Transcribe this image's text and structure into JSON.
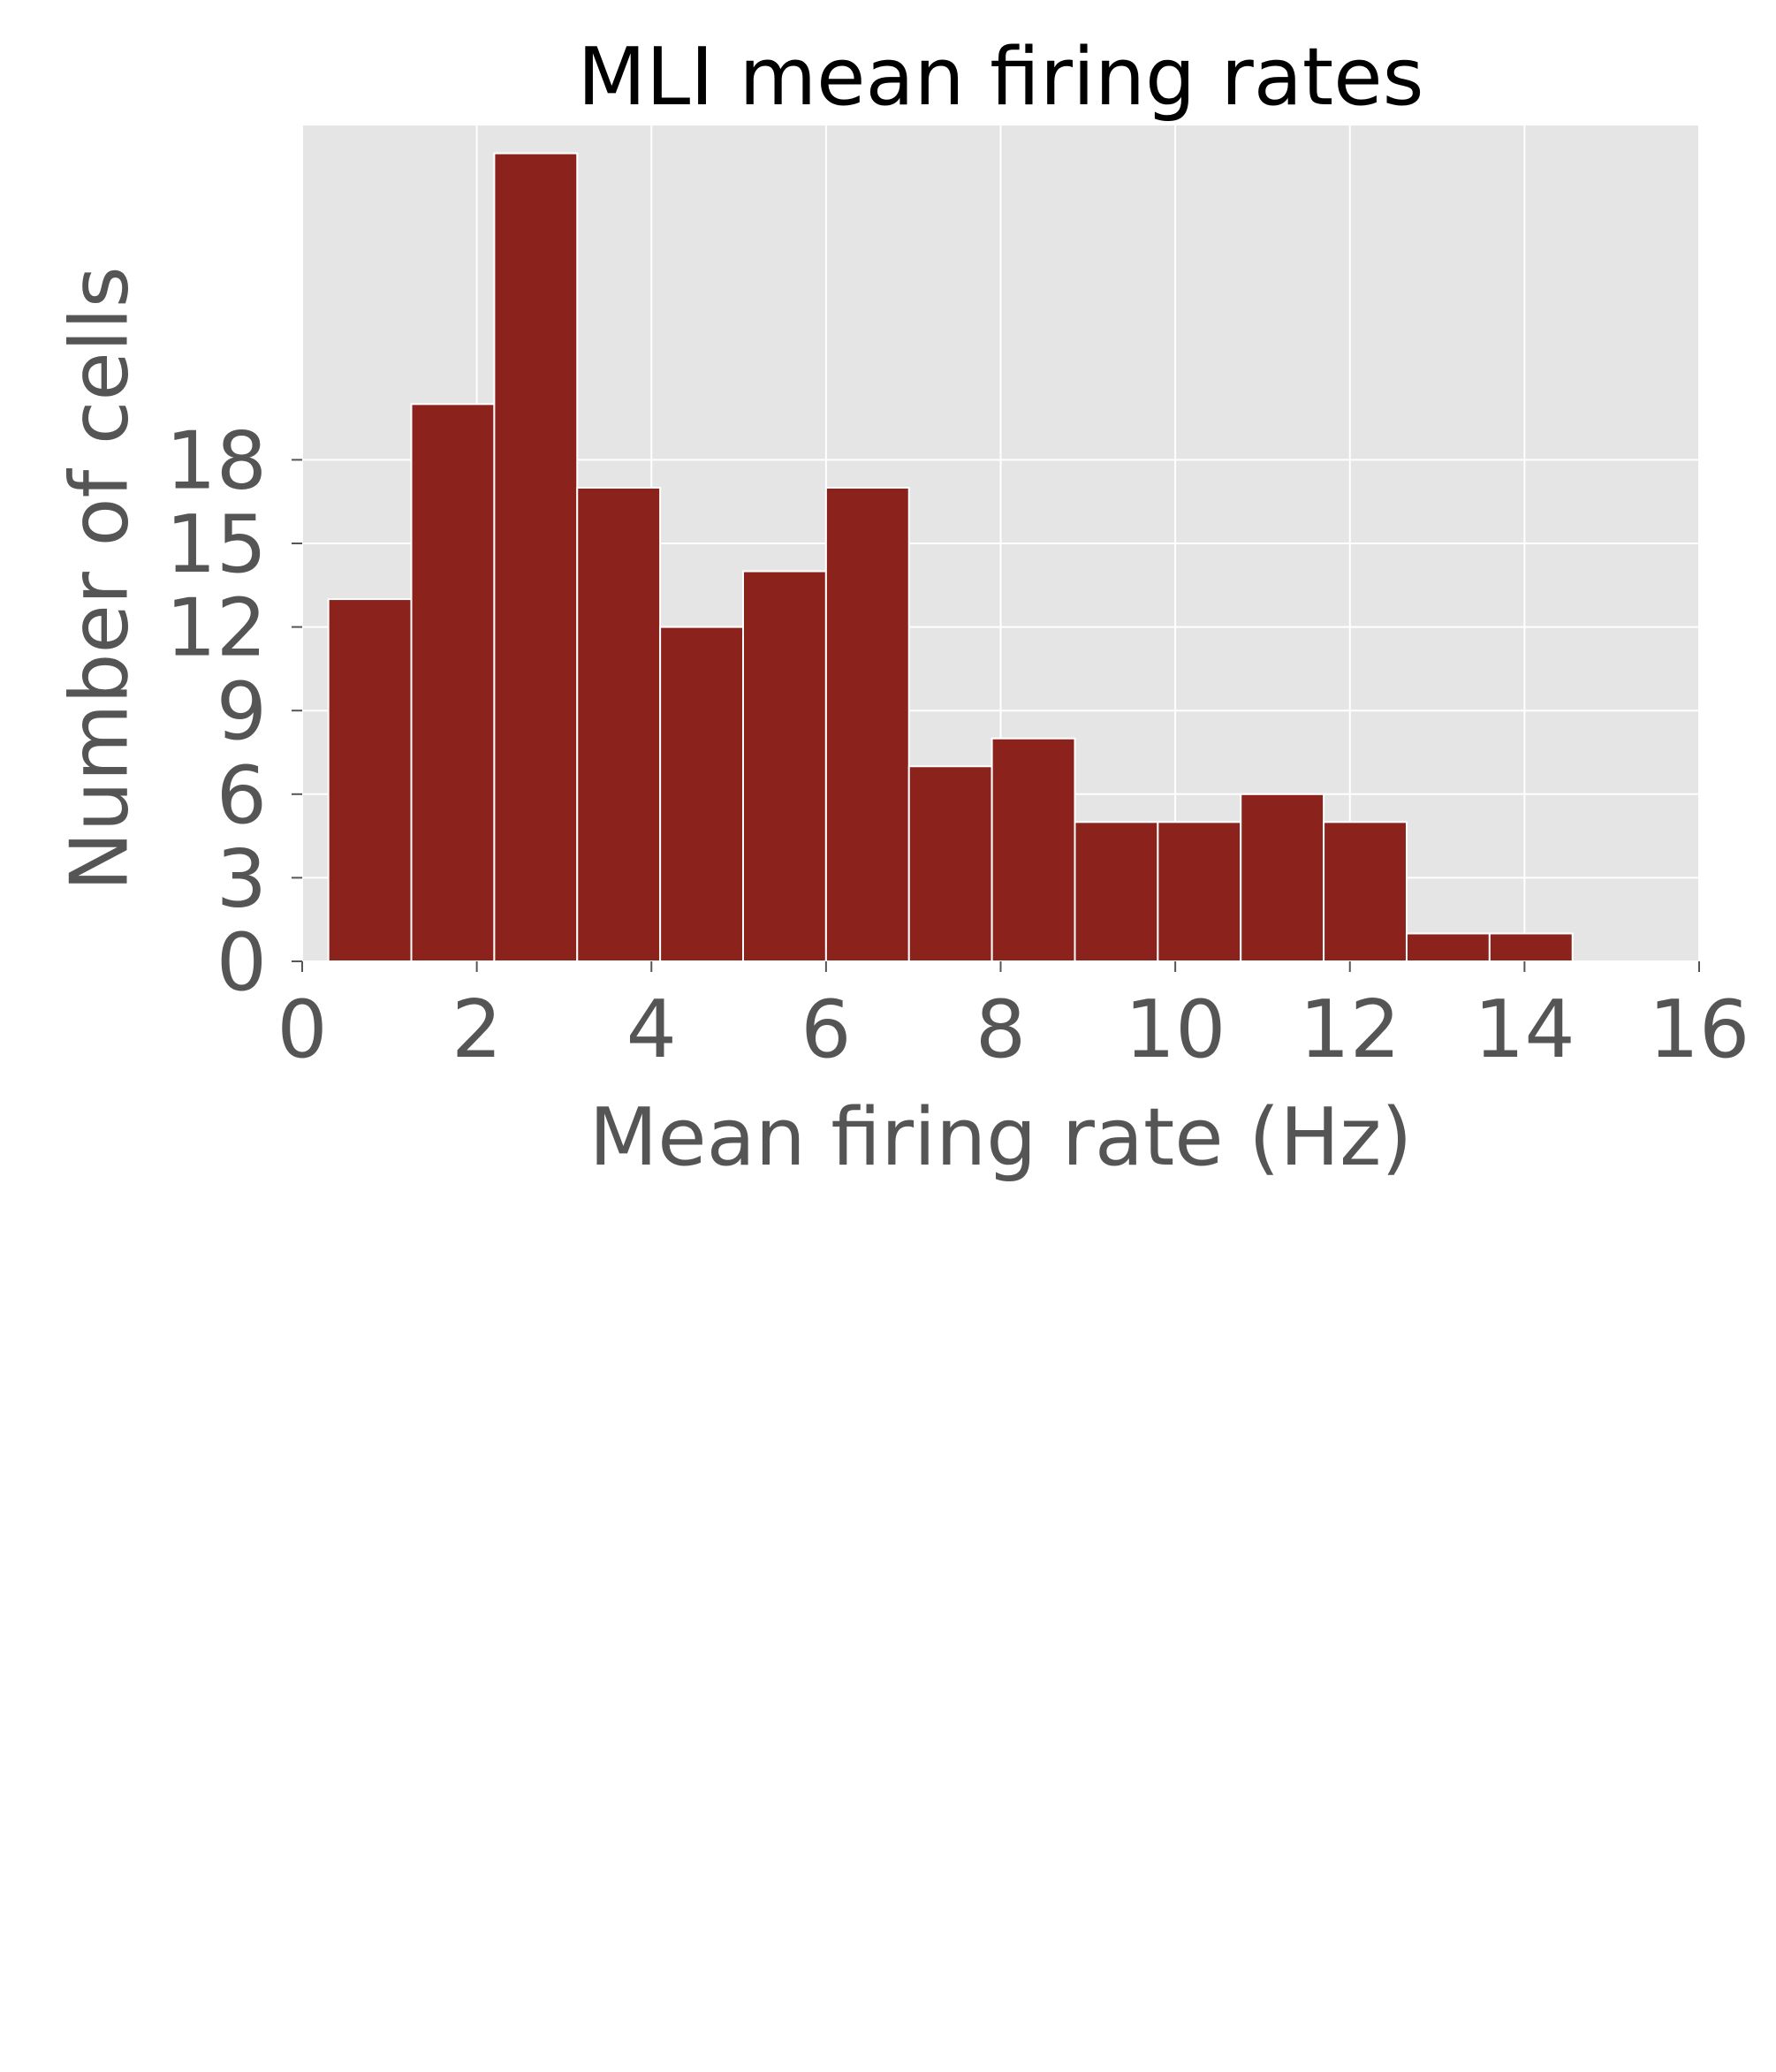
{
  "chart_data": {
    "type": "bar",
    "title": "MLI mean firing rates",
    "xlabel": "Mean firing rate (Hz)",
    "ylabel": "Number of cells",
    "xlim": [
      0,
      16
    ],
    "ylim": [
      0,
      30
    ],
    "xticks": [
      0,
      2,
      4,
      6,
      8,
      10,
      12,
      14,
      16
    ],
    "yticks": [
      0,
      3,
      6,
      9,
      12,
      15,
      18
    ],
    "bin_edges": [
      0.3,
      1.25,
      2.2,
      3.15,
      4.1,
      5.05,
      6.0,
      6.95,
      7.9,
      8.85,
      9.8,
      10.75,
      11.7,
      12.65,
      13.6,
      14.55
    ],
    "values": [
      13,
      20,
      29,
      17,
      12,
      14,
      17,
      7,
      8,
      5,
      5,
      6,
      5,
      1,
      1
    ],
    "grid": true,
    "colors": {
      "bar": "#8B221B",
      "plot_background": "#E5E5E5",
      "grid": "#FFFFFF",
      "tick_label": "#555555",
      "title": "#000000"
    }
  }
}
